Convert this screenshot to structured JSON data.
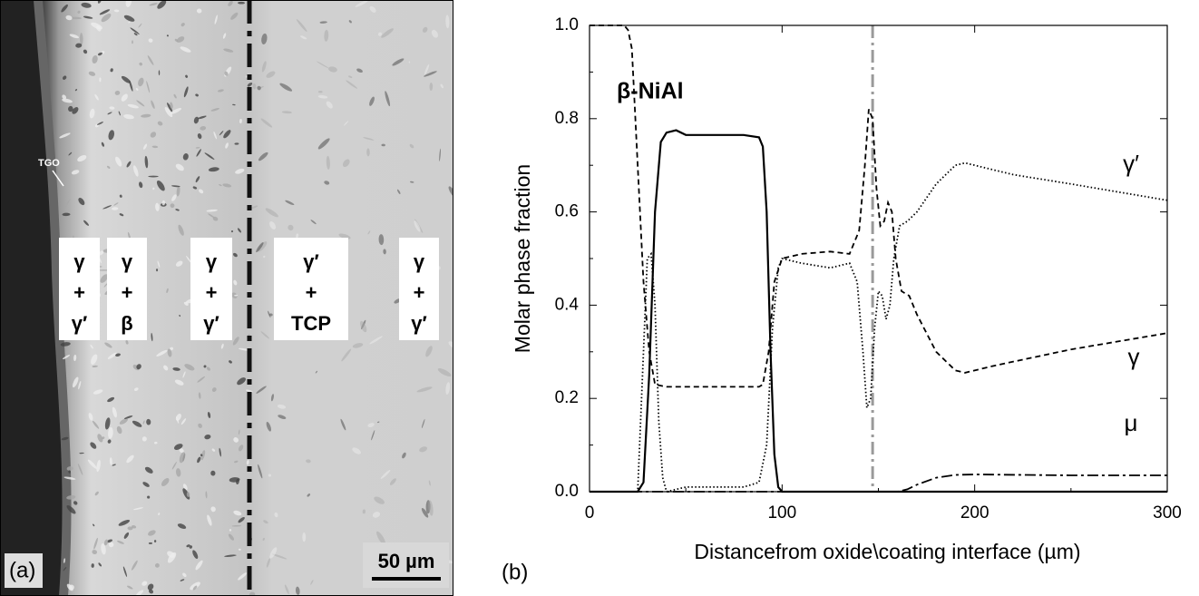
{
  "micrograph": {
    "tgo_label": "TGO",
    "phase_boxes": [
      [
        "γ",
        "+",
        "γ′"
      ],
      [
        "γ",
        "+",
        "β"
      ],
      [
        "γ",
        "+",
        "γ′"
      ],
      [
        "γ′",
        "+",
        "TCP"
      ],
      [
        "γ",
        "+",
        "γ′"
      ]
    ],
    "scale_bar": "50 µm",
    "panel_label": "(a)"
  },
  "chart_data": {
    "type": "line",
    "panel_label": "(b)",
    "x_label": "Distancefrom oxide\\coating interface (µm)",
    "y_label": "Molar phase fraction",
    "xlim": [
      0,
      300
    ],
    "ylim": [
      0,
      1
    ],
    "xticks": [
      0,
      100,
      200,
      300
    ],
    "xminor": [
      50,
      150,
      250
    ],
    "yticks": [
      {
        "value": 0,
        "label": "0.0"
      },
      0.2,
      0.4,
      0.6,
      0.8,
      {
        "value": 1,
        "label": "1.0"
      }
    ],
    "yminor": [
      0.1,
      0.3,
      0.5,
      0.7,
      0.9
    ],
    "vline": {
      "x": 147,
      "color": "#9a9a9a"
    },
    "series": [
      {
        "name": "β-NiAl",
        "color": "#000000",
        "line_style": "solid",
        "x": [
          0,
          25,
          28,
          31,
          34,
          37,
          40,
          45,
          50,
          60,
          70,
          80,
          88,
          90,
          92,
          94,
          96,
          98,
          100,
          300
        ],
        "values": [
          0,
          0,
          0.02,
          0.25,
          0.6,
          0.75,
          0.77,
          0.775,
          0.765,
          0.765,
          0.765,
          0.765,
          0.76,
          0.74,
          0.6,
          0.3,
          0.08,
          0.01,
          0,
          0
        ]
      },
      {
        "name": "γ",
        "color": "#000000",
        "line_style": "dashed",
        "x": [
          0,
          18,
          20,
          22,
          25,
          28,
          31,
          34,
          40,
          60,
          88,
          90,
          93,
          96,
          100,
          110,
          125,
          135,
          140,
          143,
          145,
          147,
          149,
          151,
          153,
          155,
          157,
          159,
          162,
          166,
          170,
          180,
          190,
          195,
          210,
          250,
          300
        ],
        "values": [
          1,
          1,
          0.99,
          0.95,
          0.7,
          0.45,
          0.3,
          0.23,
          0.225,
          0.225,
          0.225,
          0.23,
          0.3,
          0.45,
          0.5,
          0.51,
          0.515,
          0.51,
          0.56,
          0.7,
          0.82,
          0.8,
          0.65,
          0.57,
          0.58,
          0.62,
          0.6,
          0.5,
          0.43,
          0.42,
          0.38,
          0.3,
          0.26,
          0.255,
          0.27,
          0.305,
          0.34
        ]
      },
      {
        "name": "γ′",
        "color": "#000000",
        "line_style": "dotted",
        "x": [
          0,
          25,
          28,
          30,
          32,
          34,
          36,
          38,
          40,
          50,
          80,
          88,
          92,
          95,
          98,
          100,
          110,
          125,
          135,
          139,
          142,
          144,
          146,
          148,
          150,
          152,
          154,
          156,
          158,
          161,
          165,
          170,
          180,
          190,
          195,
          200,
          220,
          250,
          300
        ],
        "values": [
          0,
          0,
          0.3,
          0.5,
          0.51,
          0.4,
          0.15,
          0.03,
          0,
          0.01,
          0.01,
          0.02,
          0.1,
          0.35,
          0.48,
          0.5,
          0.49,
          0.48,
          0.49,
          0.45,
          0.3,
          0.18,
          0.2,
          0.35,
          0.43,
          0.42,
          0.37,
          0.4,
          0.5,
          0.57,
          0.58,
          0.6,
          0.66,
          0.7,
          0.705,
          0.7,
          0.68,
          0.66,
          0.625
        ]
      },
      {
        "name": "μ",
        "color": "#000000",
        "line_style": "dashdot",
        "x": [
          0,
          160,
          165,
          170,
          180,
          190,
          200,
          250,
          300
        ],
        "values": [
          0,
          0,
          0.005,
          0.015,
          0.03,
          0.036,
          0.037,
          0.035,
          0.035
        ]
      }
    ]
  }
}
